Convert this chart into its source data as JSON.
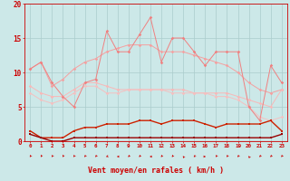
{
  "x": [
    0,
    1,
    2,
    3,
    4,
    5,
    6,
    7,
    8,
    9,
    10,
    11,
    12,
    13,
    14,
    15,
    16,
    17,
    18,
    19,
    20,
    21,
    22,
    23
  ],
  "line_rafales": [
    10.5,
    11.5,
    8.5,
    6.5,
    5.0,
    8.5,
    9.0,
    16.0,
    13.0,
    13.0,
    15.5,
    18.0,
    11.5,
    15.0,
    15.0,
    13.0,
    11.0,
    13.0,
    13.0,
    13.0,
    5.0,
    3.0,
    11.0,
    8.5
  ],
  "line_max": [
    10.5,
    11.5,
    8.0,
    9.0,
    10.5,
    11.5,
    12.0,
    13.0,
    13.5,
    14.0,
    14.0,
    14.0,
    13.0,
    13.0,
    13.0,
    12.5,
    12.0,
    11.5,
    11.0,
    10.0,
    8.5,
    7.5,
    7.0,
    7.5
  ],
  "line_a": [
    8.0,
    7.0,
    6.5,
    6.5,
    7.5,
    8.5,
    8.5,
    8.0,
    7.5,
    7.5,
    7.5,
    7.5,
    7.5,
    7.5,
    7.5,
    7.0,
    7.0,
    7.0,
    7.0,
    6.5,
    6.0,
    5.5,
    5.0,
    7.5
  ],
  "line_b": [
    7.0,
    6.0,
    5.5,
    6.0,
    7.0,
    8.0,
    8.0,
    7.0,
    7.0,
    7.5,
    7.5,
    7.5,
    7.5,
    7.0,
    7.0,
    7.0,
    7.0,
    6.5,
    6.5,
    6.0,
    5.0,
    3.5,
    3.0,
    3.5
  ],
  "line_moyen": [
    1.5,
    0.5,
    0.5,
    0.5,
    1.5,
    2.0,
    2.0,
    2.5,
    2.5,
    2.5,
    3.0,
    3.0,
    2.5,
    3.0,
    3.0,
    3.0,
    2.5,
    2.0,
    2.5,
    2.5,
    2.5,
    2.5,
    3.0,
    1.5
  ],
  "line_min": [
    1.0,
    0.5,
    0.0,
    0.0,
    0.5,
    0.5,
    0.5,
    0.5,
    0.5,
    0.5,
    0.5,
    0.5,
    0.5,
    0.5,
    0.5,
    0.5,
    0.5,
    0.5,
    0.5,
    0.5,
    0.5,
    0.5,
    0.5,
    1.0
  ],
  "color_rafales": "#f08080",
  "color_max": "#f4a0a0",
  "color_a": "#f8b8b8",
  "color_b": "#f4c0c0",
  "color_moyen": "#cc2200",
  "color_min": "#990000",
  "bg_color": "#cce8e8",
  "grid_color": "#aacccc",
  "axis_color": "#cc0000",
  "xlabel": "Vent moyen/en rafales ( km/h )",
  "ylim": [
    0,
    20
  ],
  "xlim": [
    -0.5,
    23.5
  ],
  "yticks": [
    0,
    5,
    10,
    15,
    20
  ],
  "arrow_angles": [
    225,
    210,
    225,
    210,
    220,
    225,
    225,
    250,
    270,
    230,
    225,
    270,
    230,
    225,
    310,
    235,
    90,
    225,
    225,
    230,
    315,
    230,
    230,
    220
  ]
}
